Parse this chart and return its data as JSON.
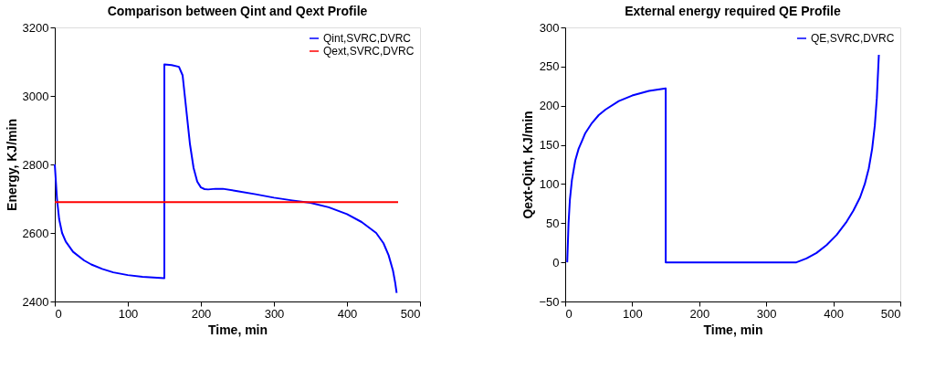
{
  "chart_data": [
    {
      "type": "line",
      "title": "Comparison between Qint and Qext Profile",
      "xlabel": "Time, min",
      "ylabel": "Energy, KJ/min",
      "xlim": [
        0,
        500
      ],
      "xticks": [
        0,
        100,
        200,
        300,
        400,
        500
      ],
      "ylim": [
        2400,
        3200
      ],
      "yticks": [
        2400,
        2600,
        2800,
        3000,
        3200
      ],
      "grid": false,
      "legend": "top right",
      "line_style": "solid",
      "series": [
        {
          "name": "Qint,SVRC,DVRC",
          "color": "#0000ff",
          "x": [
            0,
            3,
            6,
            10,
            15,
            25,
            40,
            50,
            65,
            80,
            100,
            120,
            150,
            150,
            160,
            170,
            175,
            180,
            185,
            190,
            195,
            200,
            205,
            210,
            220,
            230,
            250,
            275,
            300,
            325,
            350,
            375,
            400,
            420,
            440,
            450,
            457,
            463,
            466,
            468
          ],
          "values": [
            2800,
            2700,
            2640,
            2600,
            2575,
            2545,
            2520,
            2508,
            2495,
            2485,
            2477,
            2472,
            2468,
            3092,
            3090,
            3085,
            3060,
            2960,
            2860,
            2790,
            2750,
            2733,
            2728,
            2727,
            2729,
            2729,
            2722,
            2713,
            2703,
            2695,
            2688,
            2675,
            2655,
            2632,
            2600,
            2570,
            2535,
            2490,
            2455,
            2425
          ]
        },
        {
          "name": "Qext,SVRC,DVRC",
          "color": "#ff0000",
          "x": [
            0,
            470
          ],
          "values": [
            2690,
            2690
          ]
        }
      ]
    },
    {
      "type": "line",
      "title": "External energy required QE Profile",
      "xlabel": "Time, min",
      "ylabel": "Qext-Qint, KJ/min",
      "xlim": [
        0,
        500
      ],
      "xticks": [
        0,
        100,
        200,
        300,
        400,
        500
      ],
      "ylim": [
        -50,
        300
      ],
      "yticks": [
        -50,
        0,
        50,
        100,
        150,
        200,
        250,
        300
      ],
      "grid": false,
      "legend": "top right",
      "line_style": "solid",
      "series": [
        {
          "name": "QE,SVRC,DVRC",
          "color": "#0000ff",
          "x": [
            3,
            5,
            7,
            10,
            15,
            20,
            25,
            30,
            40,
            50,
            60,
            80,
            100,
            125,
            150,
            150,
            200,
            250,
            300,
            345,
            360,
            375,
            390,
            405,
            420,
            430,
            440,
            447,
            453,
            458,
            462,
            465,
            468
          ],
          "values": [
            0,
            50,
            80,
            105,
            130,
            145,
            155,
            165,
            178,
            188,
            195,
            206,
            213,
            219,
            222,
            0,
            0,
            0,
            0,
            0,
            5,
            12,
            22,
            35,
            52,
            66,
            83,
            100,
            120,
            145,
            175,
            210,
            265
          ]
        }
      ]
    }
  ]
}
